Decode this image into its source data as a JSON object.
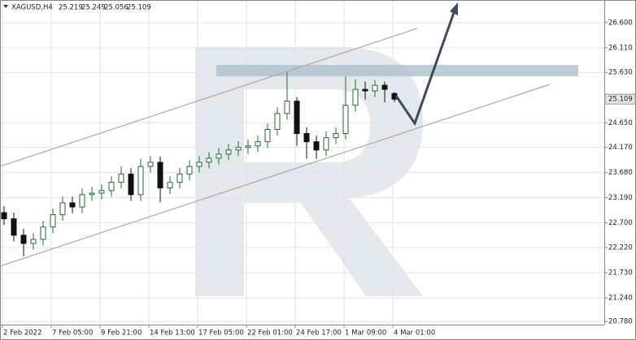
{
  "chart_data": {
    "type": "candlestick",
    "title": "XAGUSD,H4",
    "categories": [
      "2 Feb 2022",
      null,
      null,
      null,
      null,
      "7 Feb 05:00",
      null,
      null,
      null,
      null,
      "9 Feb 21:00",
      null,
      null,
      null,
      null,
      "14 Feb 13:00",
      null,
      null,
      null,
      null,
      "17 Feb 05:00",
      null,
      null,
      null,
      null,
      "22 Feb 01:00",
      null,
      null,
      null,
      null,
      "24 Feb 17:00",
      null,
      null,
      null,
      null,
      "1 Mar 09:00",
      null,
      null,
      null,
      null,
      "4 Mar 01:00"
    ],
    "open": [
      22.9,
      22.78,
      22.46,
      22.3,
      22.38,
      22.62,
      22.86,
      23.09,
      23.01,
      23.25,
      23.28,
      23.33,
      23.49,
      23.65,
      23.25,
      23.8,
      23.88,
      23.38,
      23.49,
      23.65,
      23.8,
      23.88,
      23.96,
      24.04,
      24.12,
      24.17,
      24.2,
      24.28,
      24.52,
      24.83,
      25.07,
      24.44,
      24.28,
      24.12,
      24.36,
      24.44,
      24.99,
      25.3,
      25.27,
      25.38,
      25.219
    ],
    "high": [
      23.02,
      22.9,
      22.58,
      22.5,
      22.74,
      22.98,
      23.21,
      23.21,
      23.37,
      23.4,
      23.45,
      23.61,
      23.8,
      23.77,
      23.95,
      24.0,
      23.99,
      23.61,
      23.77,
      23.92,
      24.0,
      24.08,
      24.16,
      24.24,
      24.29,
      24.32,
      24.4,
      24.64,
      24.95,
      25.63,
      25.15,
      24.56,
      24.4,
      24.48,
      24.56,
      25.55,
      25.5,
      25.45,
      25.48,
      25.45,
      25.249
    ],
    "low": [
      22.66,
      22.34,
      22.05,
      22.18,
      22.26,
      22.5,
      22.74,
      22.89,
      22.89,
      23.13,
      23.16,
      23.21,
      23.37,
      23.13,
      23.13,
      23.68,
      23.1,
      23.26,
      23.37,
      23.53,
      23.68,
      23.76,
      23.84,
      23.92,
      24.0,
      24.05,
      24.08,
      24.16,
      24.4,
      24.71,
      24.2,
      23.95,
      23.95,
      24.0,
      24.24,
      24.32,
      24.87,
      25.1,
      25.15,
      25.05,
      25.056
    ],
    "close": [
      22.78,
      22.46,
      22.3,
      22.38,
      22.62,
      22.86,
      23.09,
      23.01,
      23.25,
      23.28,
      23.33,
      23.49,
      23.65,
      23.25,
      23.8,
      23.88,
      23.38,
      23.49,
      23.65,
      23.8,
      23.88,
      23.96,
      24.04,
      24.12,
      24.17,
      24.2,
      24.28,
      24.52,
      24.83,
      25.07,
      24.44,
      24.28,
      24.12,
      24.36,
      24.44,
      24.99,
      25.3,
      25.27,
      25.38,
      25.3,
      25.109
    ],
    "up_color": "#1f6f2f",
    "down_color": "#111111",
    "ylim": [
      20.72,
      27.04
    ],
    "yticks": [
      {
        "value": 26.6,
        "label": "26.600"
      },
      {
        "value": 26.11,
        "label": "26.110"
      },
      {
        "value": 25.63,
        "label": "25.630"
      },
      {
        "value": 24.65,
        "label": "24.650"
      },
      {
        "value": 24.17,
        "label": "24.170"
      },
      {
        "value": 23.68,
        "label": "23.680"
      },
      {
        "value": 23.19,
        "label": "23.190"
      },
      {
        "value": 22.7,
        "label": "22.700"
      },
      {
        "value": 22.22,
        "label": "22.220"
      },
      {
        "value": 21.73,
        "label": "21.730"
      },
      {
        "value": 21.24,
        "label": "21.240"
      },
      {
        "value": 20.78,
        "label": "20.780"
      }
    ],
    "grid": true
  }
}
